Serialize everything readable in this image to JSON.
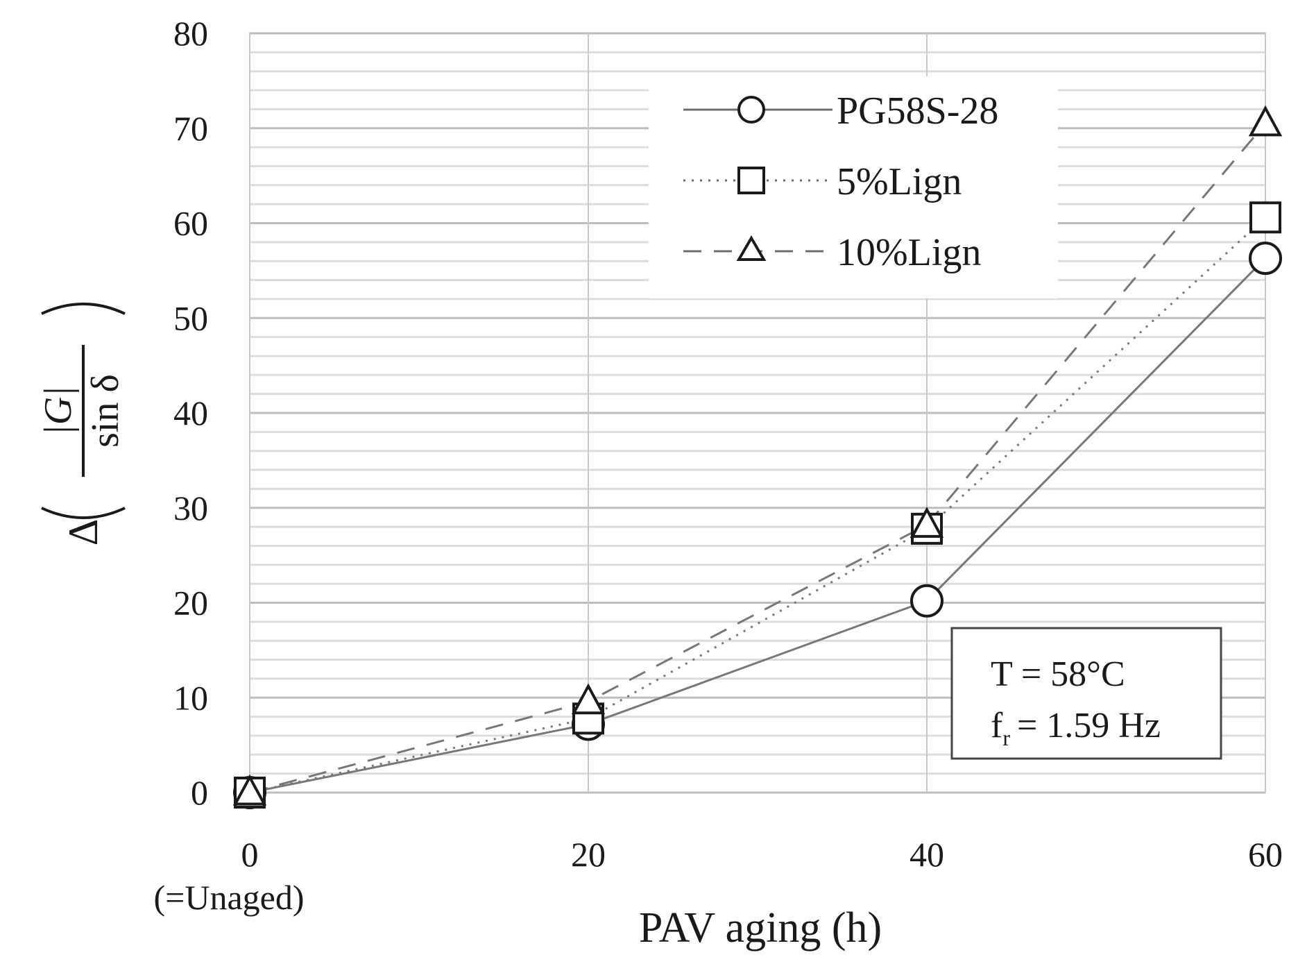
{
  "chart_data": {
    "type": "line",
    "title": "",
    "xlabel": "PAV aging (h)",
    "x_sublabel": "(=Unaged)",
    "ylabel": {
      "prefix": "Δ",
      "numerator": "|G|",
      "denominator": "sin δ"
    },
    "x": [
      0,
      20,
      40,
      60
    ],
    "x_tick_labels": [
      "0",
      "20",
      "40",
      "60"
    ],
    "y_tick_labels": [
      "0",
      "10",
      "20",
      "30",
      "40",
      "50",
      "60",
      "70",
      "80"
    ],
    "xlim": [
      0,
      60
    ],
    "ylim": [
      0,
      80
    ],
    "grid": true,
    "legend_position": "top-right",
    "series": [
      {
        "name": "PG58S-28",
        "marker": "circle",
        "line": "solid",
        "color": "#777777",
        "values": [
          0,
          7.2,
          20.2,
          56.3
        ]
      },
      {
        "name": "5%Lign",
        "marker": "square",
        "line": "dotted",
        "color": "#777777",
        "values": [
          0,
          7.8,
          27.8,
          60.6
        ]
      },
      {
        "name": "10%Lign",
        "marker": "triangle",
        "line": "dashed",
        "color": "#777777",
        "values": [
          0,
          9.6,
          28.2,
          70.5
        ]
      }
    ],
    "annotation": {
      "temperature": "T = 58°C",
      "frequency_symbol": "f",
      "frequency_subscript": "r",
      "frequency_value": "= 1.59 Hz"
    }
  }
}
